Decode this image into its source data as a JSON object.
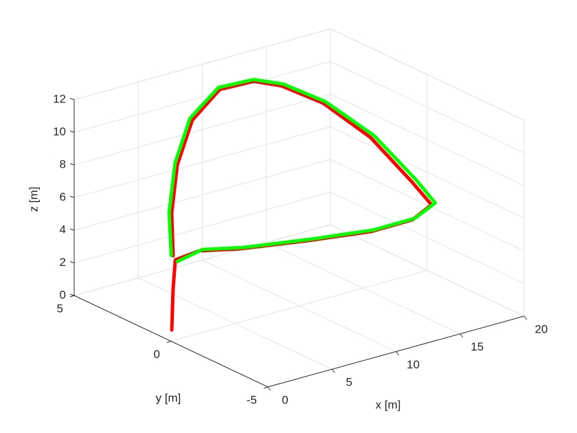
{
  "chart_data": {
    "type": "line3d",
    "xlabel": "x [m]",
    "ylabel": "y [m]",
    "zlabel": "z [m]",
    "xlim": [
      0,
      20
    ],
    "xticks": [
      0,
      5,
      10,
      15,
      20
    ],
    "ylim": [
      -5,
      5
    ],
    "yticks": [
      -5,
      0,
      5
    ],
    "zlim": [
      0,
      12
    ],
    "zticks": [
      0,
      2,
      4,
      6,
      8,
      10,
      12
    ],
    "grid": true,
    "series": [
      {
        "color": "#ff0000",
        "x": [
          0.36,
          0.48,
          0.53,
          3.15,
          5.9,
          10.5,
          14.5,
          16.9,
          17.7,
          16.55,
          14.9,
          13.6,
          12.5,
          11.6,
          9.95,
          7.07,
          5.07,
          3.18,
          1.36
        ],
        "y": [
          0.2,
          0.21,
          0.13,
          0.63,
          0.33,
          -0.19,
          -0.75,
          -1.29,
          -1.74,
          -1.5,
          -0.45,
          1.15,
          2.56,
          3.41,
          4.06,
          3.58,
          3.03,
          2.07,
          0.79
        ],
        "z": [
          0.5,
          3,
          4.8,
          4.5,
          4.2,
          4,
          4,
          4.5,
          5.5,
          7,
          9.5,
          11,
          11.5,
          11.5,
          11,
          10,
          8,
          6,
          4.5
        ]
      },
      {
        "color": "#00ff00",
        "x": [
          0.8,
          3.3,
          6.0,
          10.6,
          14.6,
          17.0,
          17.9,
          16.8,
          15.1,
          13.7,
          12.6,
          11.6,
          9.9,
          7.0,
          5.0,
          3.1,
          1.3
        ],
        "y": [
          0.2,
          0.55,
          0.25,
          -0.25,
          -0.8,
          -1.35,
          -1.8,
          -1.55,
          -0.5,
          1.1,
          2.55,
          3.42,
          4.1,
          3.65,
          3.1,
          2.15,
          0.85
        ],
        "z": [
          4.6,
          4.6,
          4.3,
          4.1,
          4.1,
          4.6,
          5.6,
          7.1,
          9.6,
          11.1,
          11.6,
          11.6,
          11.1,
          10.1,
          8.1,
          6.0,
          4.5
        ]
      }
    ]
  }
}
